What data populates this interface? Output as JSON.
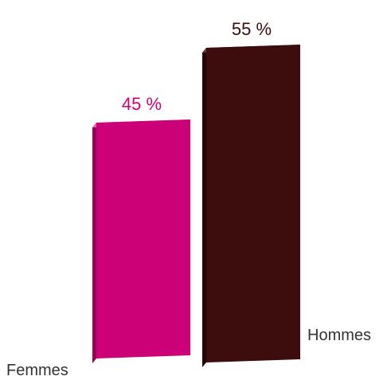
{
  "chart_data": {
    "type": "bar",
    "categories": [
      "Femmes",
      "Hommes"
    ],
    "values": [
      45,
      55
    ],
    "value_labels": [
      "45 %",
      "55 %"
    ],
    "unit": "%",
    "colors": [
      "#cc0077",
      "#3d0d0d"
    ],
    "colors_side": [
      "#8f0054",
      "#240606"
    ],
    "colors_top": [
      "#e066a8",
      "#6b3a3a"
    ],
    "title": "",
    "xlabel": "",
    "ylabel": "",
    "ylim": [
      0,
      55
    ],
    "grid": false,
    "legend": "none",
    "style": "3d"
  }
}
